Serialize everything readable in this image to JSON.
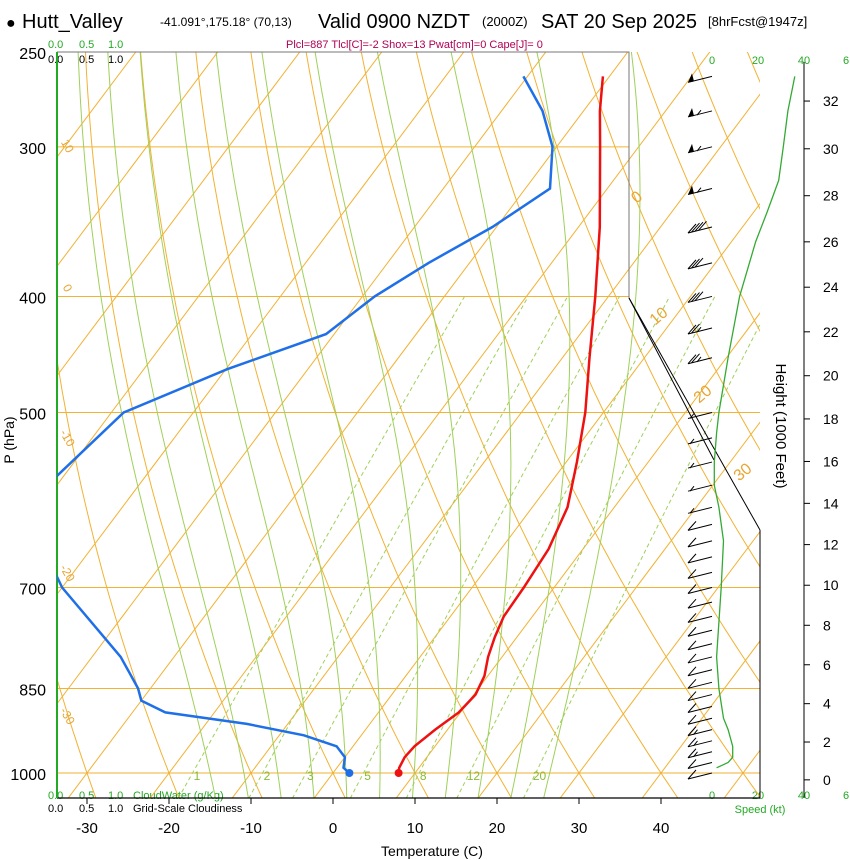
{
  "header": {
    "dot": "●",
    "site": "Hutt_Valley",
    "coords": "-41.091°,175.18° (70,13)",
    "valid": "Valid 0900 NZDT",
    "utc": "(2000Z)",
    "date": "SAT 20 Sep 2025",
    "fcst": "[8hrFcst@1947z]",
    "indices": "Plcl=887 Tlcl[C]=-2 Shox=13 Pwat[cm]=0 Cape[J]= 0"
  },
  "colors": {
    "temperature": "#ee1111",
    "dewpoint": "#1e6fe8",
    "isotherm_dry": "#f2b233",
    "moist_adiabat": "#9fd05a",
    "mixing_ratio": "#9fd05a",
    "speed": "#33aa33",
    "wind": "#000000",
    "indices_text": "#b00055",
    "cloud_axis": "#22aa22"
  },
  "chart_data": {
    "type": "line",
    "title": "Hutt_Valley Valid 0900 NZDT (2000Z) SAT 20 Sep 2025",
    "xlabel": "Temperature (C)",
    "ylabel": "P (hPa)",
    "right_ylabel": "Height (1000 Feet)",
    "xlim": [
      -34,
      36
    ],
    "ylim_hpa": [
      1030,
      250
    ],
    "x_ticks": [
      -30,
      -20,
      -10,
      0,
      10,
      20,
      30,
      40
    ],
    "pressure_ticks": [
      1000,
      850,
      700,
      500,
      400,
      300,
      250
    ],
    "height_ticks_kft": [
      0,
      2,
      4,
      6,
      8,
      10,
      12,
      14,
      16,
      18,
      20,
      22,
      24,
      26,
      28,
      30,
      32
    ],
    "isotherm_labels": [
      "10",
      "0",
      "-10",
      "-20",
      "-30",
      "0",
      "10",
      "20",
      "30"
    ],
    "mixing_ratio_labels": [
      "1",
      "2",
      "3",
      "5",
      "8",
      "12",
      "20"
    ],
    "cloud_top_labels": {
      "green": [
        "0.0",
        "0.5",
        "1.0"
      ],
      "black": [
        "0.0",
        "0.5",
        "1.0"
      ]
    },
    "cloud_bottom_labels": {
      "green": [
        "0.0",
        "0.5",
        "1.0"
      ],
      "green_title": "CloudWater (g/Kg)",
      "black": [
        "0.0",
        "0.5",
        "1.0"
      ],
      "black_title": "Grid-Scale Cloudiness"
    },
    "speed_axis_labels": [
      "0",
      "20",
      "40",
      "6"
    ],
    "speed_axis_title": "Speed (kt)",
    "series": [
      {
        "name": "Temperature",
        "points": [
          {
            "p": 1000,
            "t": 8.0
          },
          {
            "p": 990,
            "t": 7.6
          },
          {
            "p": 970,
            "t": 7.3
          },
          {
            "p": 950,
            "t": 7.5
          },
          {
            "p": 920,
            "t": 8.5
          },
          {
            "p": 890,
            "t": 9.8
          },
          {
            "p": 860,
            "t": 10.2
          },
          {
            "p": 830,
            "t": 9.6
          },
          {
            "p": 800,
            "t": 8.3
          },
          {
            "p": 770,
            "t": 7.3
          },
          {
            "p": 740,
            "t": 6.5
          },
          {
            "p": 700,
            "t": 6.3
          },
          {
            "p": 650,
            "t": 5.8
          },
          {
            "p": 600,
            "t": 4.3
          },
          {
            "p": 550,
            "t": 1.3
          },
          {
            "p": 500,
            "t": -2.2
          },
          {
            "p": 450,
            "t": -6.7
          },
          {
            "p": 400,
            "t": -11.6
          },
          {
            "p": 350,
            "t": -17.4
          },
          {
            "p": 300,
            "t": -24.7
          },
          {
            "p": 280,
            "t": -28.0
          },
          {
            "p": 262,
            "t": -30.8
          }
        ]
      },
      {
        "name": "Dewpoint",
        "points": [
          {
            "p": 1000,
            "t": 2.0
          },
          {
            "p": 990,
            "t": 0.8
          },
          {
            "p": 970,
            "t": 0.0
          },
          {
            "p": 950,
            "t": -2.0
          },
          {
            "p": 930,
            "t": -7.0
          },
          {
            "p": 910,
            "t": -15.0
          },
          {
            "p": 890,
            "t": -26.0
          },
          {
            "p": 870,
            "t": -30.0
          },
          {
            "p": 850,
            "t": -31.5
          },
          {
            "p": 800,
            "t": -36.5
          },
          {
            "p": 700,
            "t": -50.0
          },
          {
            "p": 600,
            "t": -62.0
          },
          {
            "p": 500,
            "t": -58.5
          },
          {
            "p": 460,
            "t": -49.8
          },
          {
            "p": 430,
            "t": -41.0
          },
          {
            "p": 400,
            "t": -38.5
          },
          {
            "p": 375,
            "t": -35.0
          },
          {
            "p": 350,
            "t": -30.5
          },
          {
            "p": 325,
            "t": -27.0
          },
          {
            "p": 300,
            "t": -30.5
          },
          {
            "p": 280,
            "t": -35.0
          },
          {
            "p": 262,
            "t": -40.5
          }
        ]
      }
    ],
    "wind_barbs": [
      {
        "p": 1000,
        "speed_kt": 10
      },
      {
        "p": 980,
        "speed_kt": 10
      },
      {
        "p": 960,
        "speed_kt": 15
      },
      {
        "p": 940,
        "speed_kt": 15
      },
      {
        "p": 920,
        "speed_kt": 15
      },
      {
        "p": 900,
        "speed_kt": 10
      },
      {
        "p": 880,
        "speed_kt": 10
      },
      {
        "p": 860,
        "speed_kt": 10
      },
      {
        "p": 840,
        "speed_kt": 10
      },
      {
        "p": 820,
        "speed_kt": 10
      },
      {
        "p": 800,
        "speed_kt": 10
      },
      {
        "p": 780,
        "speed_kt": 10
      },
      {
        "p": 760,
        "speed_kt": 10
      },
      {
        "p": 740,
        "speed_kt": 10
      },
      {
        "p": 720,
        "speed_kt": 10
      },
      {
        "p": 700,
        "speed_kt": 10
      },
      {
        "p": 680,
        "speed_kt": 10
      },
      {
        "p": 660,
        "speed_kt": 10
      },
      {
        "p": 640,
        "speed_kt": 10
      },
      {
        "p": 620,
        "speed_kt": 10
      },
      {
        "p": 600,
        "speed_kt": 5
      },
      {
        "p": 575,
        "speed_kt": 5
      },
      {
        "p": 550,
        "speed_kt": 5
      },
      {
        "p": 525,
        "speed_kt": 5
      },
      {
        "p": 500,
        "speed_kt": 5
      },
      {
        "p": 450,
        "speed_kt": 25
      },
      {
        "p": 425,
        "speed_kt": 25
      },
      {
        "p": 400,
        "speed_kt": 30
      },
      {
        "p": 375,
        "speed_kt": 30
      },
      {
        "p": 350,
        "speed_kt": 40
      },
      {
        "p": 325,
        "speed_kt": 55
      },
      {
        "p": 300,
        "speed_kt": 55
      },
      {
        "p": 280,
        "speed_kt": 55
      },
      {
        "p": 262,
        "speed_kt": 50
      }
    ],
    "wind_speed_profile_kt": [
      {
        "p": 990,
        "kt": 2
      },
      {
        "p": 980,
        "kt": 7
      },
      {
        "p": 970,
        "kt": 9
      },
      {
        "p": 950,
        "kt": 9
      },
      {
        "p": 920,
        "kt": 7
      },
      {
        "p": 900,
        "kt": 5
      },
      {
        "p": 850,
        "kt": 3
      },
      {
        "p": 800,
        "kt": 2
      },
      {
        "p": 700,
        "kt": 4
      },
      {
        "p": 640,
        "kt": 5
      },
      {
        "p": 600,
        "kt": 3
      },
      {
        "p": 575,
        "kt": 1
      },
      {
        "p": 550,
        "kt": 1
      },
      {
        "p": 520,
        "kt": 2
      },
      {
        "p": 500,
        "kt": 3
      },
      {
        "p": 450,
        "kt": 7
      },
      {
        "p": 400,
        "kt": 12
      },
      {
        "p": 360,
        "kt": 19
      },
      {
        "p": 340,
        "kt": 24
      },
      {
        "p": 320,
        "kt": 29
      },
      {
        "p": 300,
        "kt": 31
      },
      {
        "p": 280,
        "kt": 33
      },
      {
        "p": 262,
        "kt": 36
      }
    ]
  }
}
